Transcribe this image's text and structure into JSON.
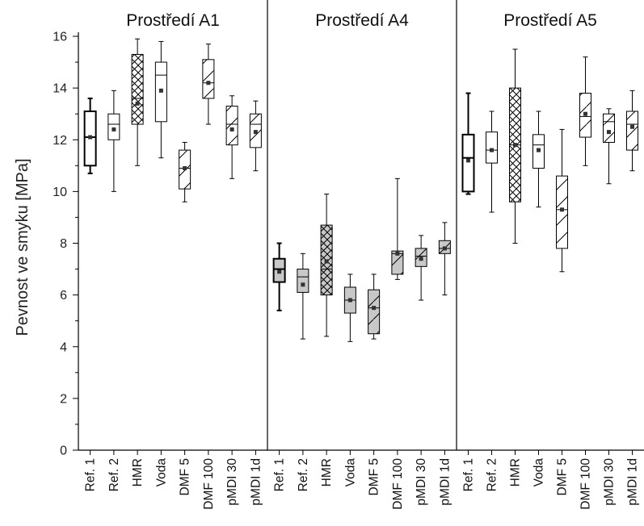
{
  "chart_data": {
    "type": "boxplot",
    "ylabel": "Pevnost ve smyku [MPa]",
    "ylim": [
      0,
      16
    ],
    "yticks": [
      0,
      2,
      4,
      6,
      8,
      10,
      12,
      14,
      16
    ],
    "grid": false,
    "categories": [
      "Ref. 1",
      "Ref. 2",
      "HMR",
      "Voda",
      "DMF 5",
      "DMF 100",
      "pMDI 30",
      "pMDI 1d"
    ],
    "panels": [
      {
        "title": "Prostředí A1",
        "boxes": [
          {
            "category": "Ref. 1",
            "whisker_low": 10.7,
            "q1": 11.0,
            "median": 12.1,
            "q3": 13.1,
            "whisker_high": 13.6,
            "mean": 12.1,
            "fill": "#ffffff",
            "pattern": "none",
            "thick": true
          },
          {
            "category": "Ref. 2",
            "whisker_low": 10.0,
            "q1": 12.0,
            "median": 12.6,
            "q3": 13.0,
            "whisker_high": 13.9,
            "mean": 12.4,
            "fill": "#ffffff",
            "pattern": "none",
            "thick": false
          },
          {
            "category": "HMR",
            "whisker_low": 11.0,
            "q1": 12.6,
            "median": 13.6,
            "q3": 15.3,
            "whisker_high": 15.9,
            "mean": 13.4,
            "fill": "#ffffff",
            "pattern": "crosshatch",
            "thick": false
          },
          {
            "category": "Voda",
            "whisker_low": 11.3,
            "q1": 12.7,
            "median": 14.5,
            "q3": 15.0,
            "whisker_high": 15.8,
            "mean": 13.9,
            "fill": "#ffffff",
            "pattern": "none",
            "thick": false
          },
          {
            "category": "DMF 5",
            "whisker_low": 9.6,
            "q1": 10.1,
            "median": 10.9,
            "q3": 11.6,
            "whisker_high": 11.9,
            "mean": 10.9,
            "fill": "#ffffff",
            "pattern": "diagonal",
            "thick": false
          },
          {
            "category": "DMF 100",
            "whisker_low": 12.6,
            "q1": 13.6,
            "median": 14.2,
            "q3": 15.1,
            "whisker_high": 15.7,
            "mean": 14.2,
            "fill": "#ffffff",
            "pattern": "diagonal",
            "thick": false
          },
          {
            "category": "pMDI 30",
            "whisker_low": 10.5,
            "q1": 11.8,
            "median": 12.6,
            "q3": 13.3,
            "whisker_high": 13.7,
            "mean": 12.4,
            "fill": "#ffffff",
            "pattern": "diagonal",
            "thick": false
          },
          {
            "category": "pMDI 1d",
            "whisker_low": 10.8,
            "q1": 11.7,
            "median": 12.6,
            "q3": 13.0,
            "whisker_high": 13.5,
            "mean": 12.3,
            "fill": "#ffffff",
            "pattern": "diagonal",
            "thick": false
          }
        ]
      },
      {
        "title": "Prostředí A4",
        "boxes": [
          {
            "category": "Ref. 1",
            "whisker_low": 5.4,
            "q1": 6.5,
            "median": 7.0,
            "q3": 7.4,
            "whisker_high": 8.0,
            "mean": 6.9,
            "fill": "#c8c8c8",
            "pattern": "none",
            "thick": true
          },
          {
            "category": "Ref. 2",
            "whisker_low": 4.3,
            "q1": 6.1,
            "median": 6.7,
            "q3": 7.0,
            "whisker_high": 7.6,
            "mean": 6.4,
            "fill": "#c8c8c8",
            "pattern": "none",
            "thick": false
          },
          {
            "category": "HMR",
            "whisker_low": 4.4,
            "q1": 6.0,
            "median": 7.0,
            "q3": 8.7,
            "whisker_high": 9.9,
            "mean": 7.3,
            "fill": "#c8c8c8",
            "pattern": "crosshatch",
            "thick": false
          },
          {
            "category": "Voda",
            "whisker_low": 4.2,
            "q1": 5.3,
            "median": 5.8,
            "q3": 6.3,
            "whisker_high": 6.8,
            "mean": 5.8,
            "fill": "#c8c8c8",
            "pattern": "none",
            "thick": false
          },
          {
            "category": "DMF 5",
            "whisker_low": 4.3,
            "q1": 4.5,
            "median": 5.5,
            "q3": 6.2,
            "whisker_high": 6.8,
            "mean": 5.5,
            "fill": "#c8c8c8",
            "pattern": "diagonal",
            "thick": false
          },
          {
            "category": "DMF 100",
            "whisker_low": 6.6,
            "q1": 6.8,
            "median": 7.6,
            "q3": 7.7,
            "whisker_high": 10.5,
            "mean": 7.6,
            "fill": "#c8c8c8",
            "pattern": "diagonal",
            "thick": false
          },
          {
            "category": "pMDI 30",
            "whisker_low": 5.8,
            "q1": 7.1,
            "median": 7.5,
            "q3": 7.8,
            "whisker_high": 8.3,
            "mean": 7.4,
            "fill": "#c8c8c8",
            "pattern": "diagonal",
            "thick": false
          },
          {
            "category": "pMDI 1d",
            "whisker_low": 6.0,
            "q1": 7.6,
            "median": 7.8,
            "q3": 8.1,
            "whisker_high": 8.8,
            "mean": 7.8,
            "fill": "#c8c8c8",
            "pattern": "diagonal",
            "thick": false
          }
        ]
      },
      {
        "title": "Prostředí A5",
        "boxes": [
          {
            "category": "Ref. 1",
            "whisker_low": 9.9,
            "q1": 10.0,
            "median": 11.3,
            "q3": 12.2,
            "whisker_high": 13.8,
            "mean": 11.2,
            "fill": "#ffffff",
            "pattern": "none",
            "thick": true
          },
          {
            "category": "Ref. 2",
            "whisker_low": 9.2,
            "q1": 11.1,
            "median": 11.6,
            "q3": 12.3,
            "whisker_high": 13.1,
            "mean": 11.6,
            "fill": "#ffffff",
            "pattern": "none",
            "thick": false
          },
          {
            "category": "HMR",
            "whisker_low": 8.0,
            "q1": 9.6,
            "median": 11.8,
            "q3": 14.0,
            "whisker_high": 15.5,
            "mean": 11.8,
            "fill": "#ffffff",
            "pattern": "crosshatch",
            "thick": false
          },
          {
            "category": "Voda",
            "whisker_low": 9.4,
            "q1": 10.9,
            "median": 11.8,
            "q3": 12.2,
            "whisker_high": 13.1,
            "mean": 11.6,
            "fill": "#ffffff",
            "pattern": "none",
            "thick": false
          },
          {
            "category": "DMF 5",
            "whisker_low": 6.9,
            "q1": 7.8,
            "median": 9.3,
            "q3": 10.6,
            "whisker_high": 12.4,
            "mean": 9.3,
            "fill": "#ffffff",
            "pattern": "diagonal",
            "thick": false
          },
          {
            "category": "DMF 100",
            "whisker_low": 11.0,
            "q1": 12.1,
            "median": 12.9,
            "q3": 13.8,
            "whisker_high": 15.2,
            "mean": 13.0,
            "fill": "#ffffff",
            "pattern": "diagonal",
            "thick": false
          },
          {
            "category": "pMDI 30",
            "whisker_low": 10.3,
            "q1": 11.9,
            "median": 12.7,
            "q3": 13.0,
            "whisker_high": 13.2,
            "mean": 12.3,
            "fill": "#ffffff",
            "pattern": "diagonal",
            "thick": false
          },
          {
            "category": "pMDI 1d",
            "whisker_low": 10.8,
            "q1": 11.6,
            "median": 12.6,
            "q3": 13.1,
            "whisker_high": 13.9,
            "mean": 12.5,
            "fill": "#ffffff",
            "pattern": "diagonal",
            "thick": false
          }
        ]
      }
    ]
  }
}
